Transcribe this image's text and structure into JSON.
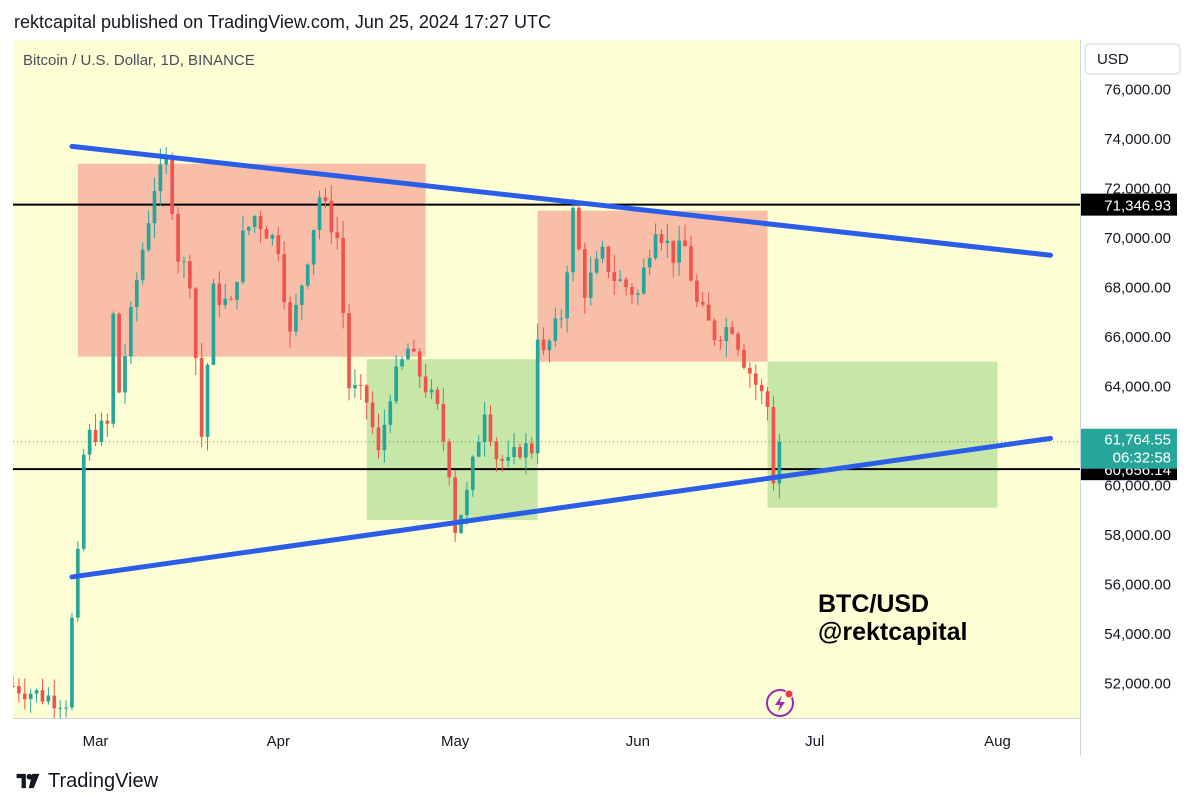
{
  "header": {
    "published": "rektcapital published on TradingView.com, Jun 25, 2024 17:27 UTC"
  },
  "footer": {
    "brand": "TradingView",
    "logo_icon": "tradingview-logo-icon"
  },
  "colors": {
    "background": "#fefed5",
    "up": "#26a69a",
    "down": "#ef5350",
    "trendline": "#2b5ee8",
    "level": "#000000",
    "red_zone": "rgba(242,112,112,0.45)",
    "green_zone": "rgba(134,204,114,0.45)",
    "current_price_badge": "#26a69a"
  },
  "chart_data": {
    "type": "candlestick",
    "title": "Bitcoin / U.S. Dollar, 1D, BINANCE",
    "currency_button": "USD",
    "xlabel": "",
    "ylabel": "",
    "ylim": [
      50600,
      78000
    ],
    "y_ticks": [
      "52,000.00",
      "54,000.00",
      "56,000.00",
      "58,000.00",
      "60,000.00",
      "62,000.00",
      "64,000.00",
      "66,000.00",
      "68,000.00",
      "70,000.00",
      "72,000.00",
      "74,000.00",
      "76,000.00"
    ],
    "y_tick_values": [
      52000,
      54000,
      56000,
      58000,
      60000,
      62000,
      64000,
      66000,
      68000,
      70000,
      72000,
      74000,
      76000
    ],
    "x_range": [
      "2024-02-16",
      "2024-08-15"
    ],
    "x_ticks": [
      {
        "label": "Mar",
        "date": "2024-03-01"
      },
      {
        "label": "Apr",
        "date": "2024-04-01"
      },
      {
        "label": "May",
        "date": "2024-05-01"
      },
      {
        "label": "Jun",
        "date": "2024-06-01"
      },
      {
        "label": "Jul",
        "date": "2024-07-01"
      },
      {
        "label": "Aug",
        "date": "2024-08-01"
      }
    ],
    "price_path_close": [
      [
        "2024-02-16",
        51900
      ],
      [
        "2024-02-21",
        51500
      ],
      [
        "2024-02-25",
        51300
      ],
      [
        "2024-02-26",
        54500
      ],
      [
        "2024-02-27",
        57000
      ],
      [
        "2024-02-28",
        61200
      ],
      [
        "2024-02-29",
        62000
      ],
      [
        "2024-03-03",
        62400
      ],
      [
        "2024-03-04",
        66800
      ],
      [
        "2024-03-05",
        63800
      ],
      [
        "2024-03-08",
        68300
      ],
      [
        "2024-03-11",
        72100
      ],
      [
        "2024-03-13",
        73000
      ],
      [
        "2024-03-14",
        71400
      ],
      [
        "2024-03-15",
        69300
      ],
      [
        "2024-03-17",
        68400
      ],
      [
        "2024-03-19",
        62000
      ],
      [
        "2024-03-21",
        67800
      ],
      [
        "2024-03-24",
        67200
      ],
      [
        "2024-03-26",
        70000
      ],
      [
        "2024-03-28",
        70900
      ],
      [
        "2024-04-01",
        69700
      ],
      [
        "2024-04-03",
        66000
      ],
      [
        "2024-04-06",
        69300
      ],
      [
        "2024-04-08",
        71700
      ],
      [
        "2024-04-11",
        70000
      ],
      [
        "2024-04-13",
        64000
      ],
      [
        "2024-04-16",
        63400
      ],
      [
        "2024-04-18",
        61200
      ],
      [
        "2024-04-20",
        63800
      ],
      [
        "2024-04-23",
        65500
      ],
      [
        "2024-04-25",
        64500
      ],
      [
        "2024-04-28",
        63000
      ],
      [
        "2024-04-30",
        60700
      ],
      [
        "2024-05-01",
        58300
      ],
      [
        "2024-05-03",
        59600
      ],
      [
        "2024-05-06",
        63200
      ],
      [
        "2024-05-08",
        61200
      ],
      [
        "2024-05-10",
        60800
      ],
      [
        "2024-05-12",
        61500
      ],
      [
        "2024-05-14",
        61500
      ],
      [
        "2024-05-15",
        66200
      ],
      [
        "2024-05-16",
        65200
      ],
      [
        "2024-05-19",
        66900
      ],
      [
        "2024-05-21",
        71000
      ],
      [
        "2024-05-23",
        67900
      ],
      [
        "2024-05-26",
        69300
      ],
      [
        "2024-05-28",
        68400
      ],
      [
        "2024-06-01",
        67700
      ],
      [
        "2024-06-04",
        70600
      ],
      [
        "2024-06-07",
        69300
      ],
      [
        "2024-06-09",
        69600
      ],
      [
        "2024-06-11",
        67300
      ],
      [
        "2024-06-14",
        66100
      ],
      [
        "2024-06-17",
        66500
      ],
      [
        "2024-06-19",
        65100
      ],
      [
        "2024-06-21",
        64100
      ],
      [
        "2024-06-23",
        63200
      ],
      [
        "2024-06-24",
        60300
      ],
      [
        "2024-06-25",
        61764.55
      ]
    ],
    "candle_count_estimate": 131,
    "last_close": 61764.55,
    "current_price_label": "61,764.55",
    "countdown_label": "06:32:58",
    "levels": [
      {
        "value": 71346.93,
        "label": "71,346.93"
      },
      {
        "value": 60656.14,
        "label": "60,656.14"
      }
    ],
    "trendlines": [
      {
        "name": "upper-descending-trendline",
        "from": {
          "date": "2024-02-26",
          "value": 73700
        },
        "to": {
          "date": "2024-08-10",
          "value": 69300
        }
      },
      {
        "name": "lower-ascending-trendline",
        "from": {
          "date": "2024-02-26",
          "value": 56300
        },
        "to": {
          "date": "2024-08-10",
          "value": 61900
        }
      }
    ],
    "zones": [
      {
        "name": "red-zone-march",
        "color": "red",
        "from": "2024-02-27",
        "to": "2024-04-26",
        "low": 65200,
        "high": 73000
      },
      {
        "name": "green-zone-april-may",
        "color": "green",
        "from": "2024-04-16",
        "to": "2024-05-15",
        "low": 58600,
        "high": 65100
      },
      {
        "name": "red-zone-may-june",
        "color": "red",
        "from": "2024-05-15",
        "to": "2024-06-23",
        "low": 65000,
        "high": 71100
      },
      {
        "name": "green-zone-july",
        "color": "green",
        "from": "2024-06-23",
        "to": "2024-08-01",
        "low": 59100,
        "high": 65000
      }
    ],
    "annotation": {
      "line1": "BTC/USD",
      "line2": "@rektcapital"
    },
    "indicator_icon": "lightning-bolt-icon"
  }
}
